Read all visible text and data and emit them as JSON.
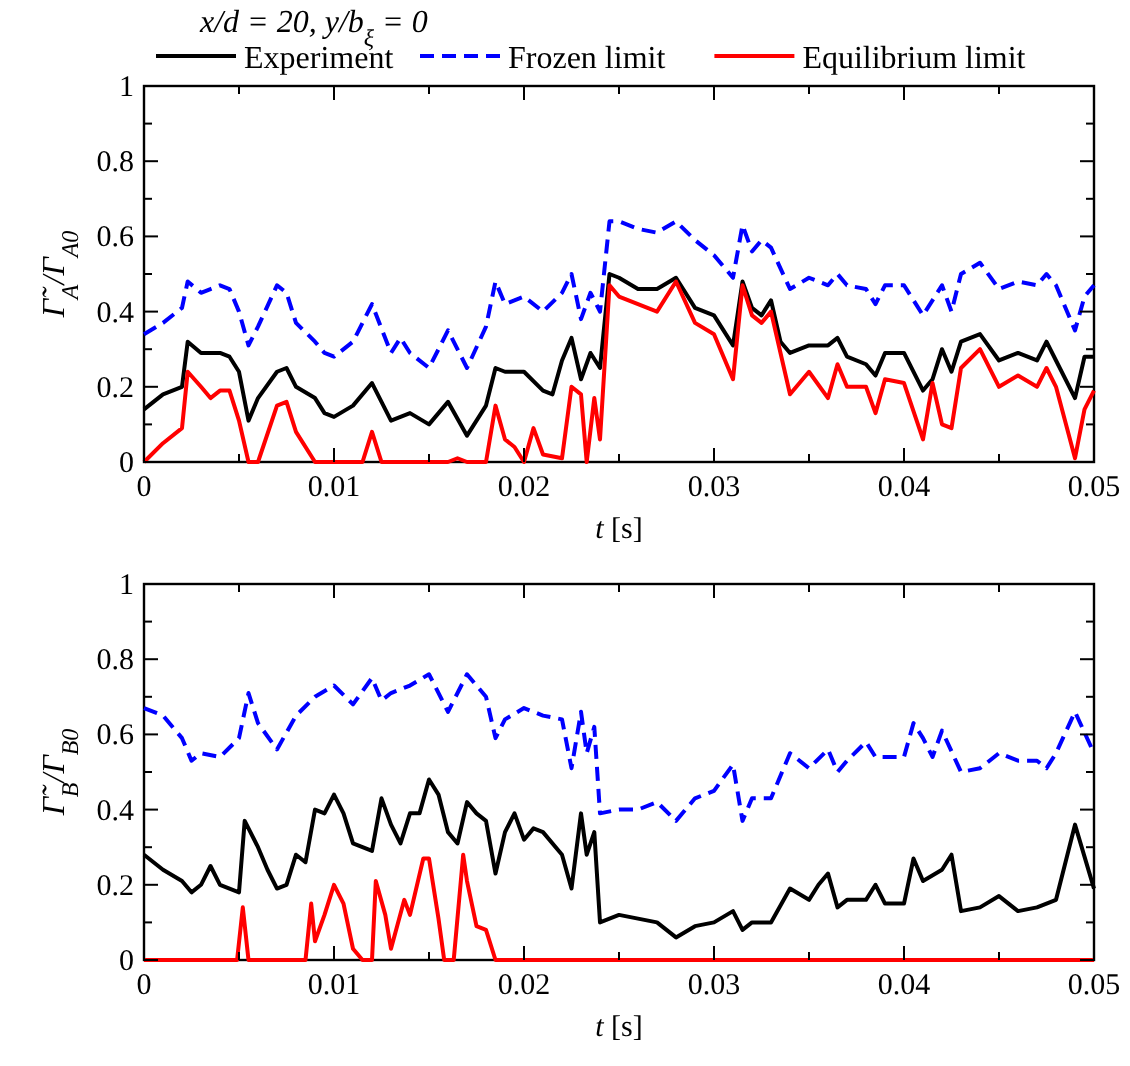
{
  "chart_data": [
    {
      "type": "line",
      "title": "x/d = 20, y/b$_{ξ}$ = 0",
      "xlabel": "t [s]",
      "ylabel": "Γ̃$_{A}$/Γ$_{A0}$",
      "legend": "top",
      "grid": false,
      "xlim": [
        0,
        0.05
      ],
      "xticks": [
        0,
        {
          "value": 0.005,
          "label": null
        },
        0.01,
        {
          "value": 0.015,
          "label": null
        },
        0.02,
        {
          "value": 0.025,
          "label": null
        },
        0.03,
        {
          "value": 0.035,
          "label": null
        },
        0.04,
        {
          "value": 0.045,
          "label": null
        },
        0.05
      ],
      "ylim": [
        0,
        1
      ],
      "yticks": [
        0,
        {
          "value": 0.1,
          "label": null
        },
        0.2,
        {
          "value": 0.3,
          "label": null
        },
        0.4,
        {
          "value": 0.5,
          "label": null
        },
        0.6,
        {
          "value": 0.7,
          "label": null
        },
        0.8,
        {
          "value": 0.9,
          "label": null
        },
        1
      ],
      "series": [
        {
          "name": "Experiment",
          "color": "#000000",
          "line_style": "solid",
          "x": [
            0,
            0.001,
            0.002,
            0.0023,
            0.003,
            0.004,
            0.0045,
            0.005,
            0.0055,
            0.006,
            0.007,
            0.0075,
            0.008,
            0.009,
            0.0095,
            0.01,
            0.011,
            0.012,
            0.013,
            0.014,
            0.015,
            0.016,
            0.017,
            0.018,
            0.0185,
            0.019,
            0.02,
            0.021,
            0.0215,
            0.022,
            0.0225,
            0.023,
            0.0235,
            0.024,
            0.0245,
            0.025,
            0.026,
            0.027,
            0.028,
            0.029,
            0.03,
            0.031,
            0.0315,
            0.032,
            0.0325,
            0.033,
            0.0335,
            0.034,
            0.035,
            0.036,
            0.0365,
            0.037,
            0.038,
            0.0385,
            0.039,
            0.04,
            0.041,
            0.0415,
            0.042,
            0.0425,
            0.043,
            0.044,
            0.045,
            0.046,
            0.047,
            0.0475,
            0.048,
            0.049,
            0.0495,
            0.05
          ],
          "values": [
            0.14,
            0.18,
            0.2,
            0.32,
            0.29,
            0.29,
            0.28,
            0.24,
            0.11,
            0.17,
            0.24,
            0.25,
            0.2,
            0.17,
            0.13,
            0.12,
            0.15,
            0.21,
            0.11,
            0.13,
            0.1,
            0.16,
            0.07,
            0.15,
            0.25,
            0.24,
            0.24,
            0.19,
            0.18,
            0.27,
            0.33,
            0.22,
            0.29,
            0.25,
            0.5,
            0.49,
            0.46,
            0.46,
            0.49,
            0.41,
            0.39,
            0.31,
            0.48,
            0.41,
            0.39,
            0.43,
            0.32,
            0.29,
            0.31,
            0.31,
            0.33,
            0.28,
            0.26,
            0.23,
            0.29,
            0.29,
            0.19,
            0.22,
            0.3,
            0.24,
            0.32,
            0.34,
            0.27,
            0.29,
            0.27,
            0.32,
            0.27,
            0.17,
            0.28,
            0.28
          ]
        },
        {
          "name": "Frozen limit",
          "color": "#0000ff",
          "line_style": "dashed",
          "x": [
            0,
            0.001,
            0.002,
            0.0023,
            0.003,
            0.0035,
            0.004,
            0.0045,
            0.005,
            0.0055,
            0.006,
            0.007,
            0.0075,
            0.008,
            0.009,
            0.0095,
            0.01,
            0.011,
            0.012,
            0.013,
            0.0135,
            0.014,
            0.015,
            0.016,
            0.017,
            0.018,
            0.0185,
            0.019,
            0.02,
            0.021,
            0.022,
            0.0225,
            0.023,
            0.0235,
            0.024,
            0.0245,
            0.025,
            0.026,
            0.027,
            0.028,
            0.029,
            0.03,
            0.031,
            0.0315,
            0.032,
            0.0325,
            0.033,
            0.034,
            0.035,
            0.036,
            0.0365,
            0.037,
            0.038,
            0.0385,
            0.039,
            0.04,
            0.041,
            0.042,
            0.0425,
            0.043,
            0.044,
            0.045,
            0.046,
            0.047,
            0.0475,
            0.048,
            0.049,
            0.0495,
            0.05
          ],
          "values": [
            0.34,
            0.37,
            0.41,
            0.48,
            0.45,
            0.46,
            0.47,
            0.46,
            0.4,
            0.31,
            0.36,
            0.47,
            0.45,
            0.37,
            0.32,
            0.29,
            0.28,
            0.32,
            0.42,
            0.29,
            0.33,
            0.29,
            0.25,
            0.35,
            0.25,
            0.36,
            0.48,
            0.42,
            0.44,
            0.4,
            0.45,
            0.5,
            0.38,
            0.45,
            0.4,
            0.64,
            0.64,
            0.62,
            0.61,
            0.64,
            0.59,
            0.55,
            0.49,
            0.63,
            0.56,
            0.59,
            0.57,
            0.46,
            0.49,
            0.47,
            0.5,
            0.47,
            0.46,
            0.42,
            0.47,
            0.47,
            0.39,
            0.47,
            0.4,
            0.5,
            0.53,
            0.46,
            0.48,
            0.47,
            0.5,
            0.47,
            0.35,
            0.44,
            0.47
          ]
        },
        {
          "name": "Equilibrium limit",
          "color": "#ff0000",
          "line_style": "solid",
          "x": [
            0,
            0.001,
            0.002,
            0.0023,
            0.003,
            0.0035,
            0.004,
            0.0045,
            0.005,
            0.0055,
            0.006,
            0.007,
            0.0075,
            0.008,
            0.009,
            0.0115,
            0.012,
            0.0125,
            0.016,
            0.0165,
            0.017,
            0.018,
            0.0185,
            0.019,
            0.0195,
            0.02,
            0.0205,
            0.021,
            0.022,
            0.0225,
            0.023,
            0.0233,
            0.0237,
            0.024,
            0.0245,
            0.025,
            0.026,
            0.027,
            0.028,
            0.029,
            0.03,
            0.031,
            0.0315,
            0.032,
            0.0325,
            0.033,
            0.0335,
            0.034,
            0.035,
            0.036,
            0.0365,
            0.037,
            0.038,
            0.0385,
            0.039,
            0.04,
            0.041,
            0.0415,
            0.042,
            0.0425,
            0.043,
            0.044,
            0.045,
            0.046,
            0.047,
            0.0475,
            0.048,
            0.049,
            0.0495,
            0.05
          ],
          "values": [
            0,
            0.05,
            0.09,
            0.24,
            0.2,
            0.17,
            0.19,
            0.19,
            0.11,
            0,
            0,
            0.15,
            0.16,
            0.08,
            0,
            0,
            0.08,
            0,
            0,
            0.01,
            0,
            0,
            0.15,
            0.06,
            0.04,
            0,
            0.09,
            0.02,
            0.01,
            0.2,
            0.18,
            0,
            0.17,
            0.06,
            0.47,
            0.44,
            0.42,
            0.4,
            0.48,
            0.37,
            0.34,
            0.22,
            0.47,
            0.39,
            0.37,
            0.4,
            0.29,
            0.18,
            0.24,
            0.17,
            0.26,
            0.2,
            0.2,
            0.13,
            0.22,
            0.21,
            0.06,
            0.21,
            0.1,
            0.09,
            0.25,
            0.3,
            0.2,
            0.23,
            0.2,
            0.25,
            0.2,
            0.01,
            0.14,
            0.19
          ]
        }
      ]
    },
    {
      "type": "line",
      "xlabel": "t [s]",
      "ylabel": "Γ̃$_{B}$/Γ$_{B0}$",
      "grid": false,
      "xlim": [
        0,
        0.05
      ],
      "xticks": [
        0,
        {
          "value": 0.005,
          "label": null
        },
        0.01,
        {
          "value": 0.015,
          "label": null
        },
        0.02,
        {
          "value": 0.025,
          "label": null
        },
        0.03,
        {
          "value": 0.035,
          "label": null
        },
        0.04,
        {
          "value": 0.045,
          "label": null
        },
        0.05
      ],
      "ylim": [
        0,
        1
      ],
      "yticks": [
        0,
        {
          "value": 0.1,
          "label": null
        },
        0.2,
        {
          "value": 0.3,
          "label": null
        },
        0.4,
        {
          "value": 0.5,
          "label": null
        },
        0.6,
        {
          "value": 0.7,
          "label": null
        },
        0.8,
        {
          "value": 0.9,
          "label": null
        },
        1
      ],
      "series": [
        {
          "color": "#000000",
          "line_style": "solid",
          "x": [
            0,
            0.001,
            0.002,
            0.0025,
            0.003,
            0.0035,
            0.004,
            0.005,
            0.0053,
            0.006,
            0.0065,
            0.007,
            0.0075,
            0.008,
            0.0085,
            0.009,
            0.0095,
            0.01,
            0.0105,
            0.011,
            0.012,
            0.0125,
            0.013,
            0.0135,
            0.014,
            0.0145,
            0.015,
            0.0155,
            0.016,
            0.0165,
            0.017,
            0.0175,
            0.018,
            0.0185,
            0.019,
            0.0195,
            0.02,
            0.0205,
            0.021,
            0.022,
            0.0225,
            0.023,
            0.0233,
            0.0237,
            0.024,
            0.025,
            0.026,
            0.027,
            0.028,
            0.029,
            0.03,
            0.031,
            0.0315,
            0.032,
            0.033,
            0.034,
            0.035,
            0.0355,
            0.036,
            0.0365,
            0.037,
            0.038,
            0.0385,
            0.039,
            0.04,
            0.0405,
            0.041,
            0.042,
            0.0425,
            0.043,
            0.044,
            0.045,
            0.046,
            0.047,
            0.048,
            0.049,
            0.05
          ],
          "values": [
            0.28,
            0.24,
            0.21,
            0.18,
            0.2,
            0.25,
            0.2,
            0.18,
            0.37,
            0.3,
            0.24,
            0.19,
            0.2,
            0.28,
            0.26,
            0.4,
            0.39,
            0.44,
            0.39,
            0.31,
            0.29,
            0.43,
            0.36,
            0.31,
            0.39,
            0.39,
            0.48,
            0.44,
            0.34,
            0.31,
            0.42,
            0.39,
            0.37,
            0.23,
            0.34,
            0.39,
            0.32,
            0.35,
            0.34,
            0.28,
            0.19,
            0.39,
            0.28,
            0.34,
            0.1,
            0.12,
            0.11,
            0.1,
            0.06,
            0.09,
            0.1,
            0.13,
            0.08,
            0.1,
            0.1,
            0.19,
            0.16,
            0.2,
            0.23,
            0.14,
            0.16,
            0.16,
            0.2,
            0.15,
            0.15,
            0.27,
            0.21,
            0.24,
            0.28,
            0.13,
            0.14,
            0.17,
            0.13,
            0.14,
            0.16,
            0.36,
            0.19
          ]
        },
        {
          "color": "#0000ff",
          "line_style": "dashed",
          "x": [
            0,
            0.001,
            0.002,
            0.0025,
            0.003,
            0.004,
            0.005,
            0.0055,
            0.006,
            0.007,
            0.008,
            0.009,
            0.01,
            0.011,
            0.012,
            0.0125,
            0.013,
            0.014,
            0.015,
            0.016,
            0.017,
            0.018,
            0.0185,
            0.019,
            0.02,
            0.021,
            0.022,
            0.0225,
            0.023,
            0.0233,
            0.0237,
            0.024,
            0.025,
            0.026,
            0.027,
            0.028,
            0.029,
            0.03,
            0.031,
            0.0315,
            0.032,
            0.033,
            0.034,
            0.035,
            0.036,
            0.0365,
            0.037,
            0.038,
            0.0385,
            0.039,
            0.04,
            0.0405,
            0.041,
            0.0415,
            0.042,
            0.043,
            0.044,
            0.045,
            0.046,
            0.047,
            0.0475,
            0.048,
            0.049,
            0.05
          ],
          "values": [
            0.67,
            0.65,
            0.59,
            0.53,
            0.55,
            0.54,
            0.59,
            0.71,
            0.63,
            0.56,
            0.65,
            0.7,
            0.73,
            0.68,
            0.75,
            0.69,
            0.71,
            0.73,
            0.76,
            0.66,
            0.76,
            0.7,
            0.59,
            0.64,
            0.67,
            0.65,
            0.64,
            0.51,
            0.66,
            0.55,
            0.62,
            0.39,
            0.4,
            0.4,
            0.42,
            0.37,
            0.43,
            0.45,
            0.52,
            0.37,
            0.43,
            0.43,
            0.55,
            0.51,
            0.56,
            0.5,
            0.53,
            0.58,
            0.54,
            0.54,
            0.54,
            0.63,
            0.59,
            0.54,
            0.61,
            0.5,
            0.51,
            0.55,
            0.53,
            0.53,
            0.51,
            0.55,
            0.66,
            0.55
          ]
        },
        {
          "color": "#ff0000",
          "line_style": "solid",
          "x": [
            0,
            0.0049,
            0.0052,
            0.0055,
            0.0085,
            0.0088,
            0.009,
            0.0095,
            0.01,
            0.0105,
            0.011,
            0.0115,
            0.012,
            0.0122,
            0.0127,
            0.013,
            0.0137,
            0.014,
            0.0147,
            0.015,
            0.0155,
            0.0158,
            0.0163,
            0.0168,
            0.017,
            0.0175,
            0.018,
            0.0185,
            0.05
          ],
          "values": [
            0,
            0,
            0.14,
            0,
            0,
            0.15,
            0.05,
            0.12,
            0.2,
            0.15,
            0.03,
            0,
            0,
            0.21,
            0.12,
            0.03,
            0.16,
            0.12,
            0.27,
            0.27,
            0.11,
            0,
            0,
            0.28,
            0.21,
            0.09,
            0.08,
            0,
            0
          ]
        }
      ]
    }
  ]
}
